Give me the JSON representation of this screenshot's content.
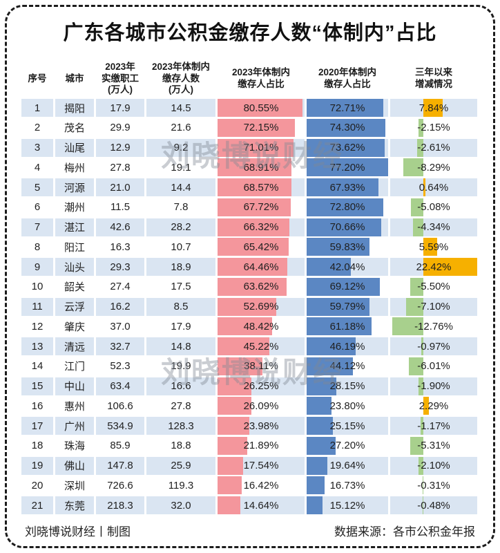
{
  "title": "广东各城市公积金缴存人数“体制内”占比",
  "watermark_text": "刘晓博说财经",
  "footer": {
    "credit": "刘晓博说财经丨制图",
    "source": "数据来源：各市公积金年报"
  },
  "colors": {
    "stripe_blue": "#dae5f2",
    "bar_pink": "#f4969c",
    "bar_blue": "#5b87c3",
    "bar_orange": "#f6b000",
    "bar_green": "#a8d08d",
    "text": "#1f1f1f",
    "border": "#1c1c1c"
  },
  "chart_data": {
    "type": "table",
    "title": "广东各城市公积金缴存人数“体制内”占比",
    "columns": [
      "序号",
      "城市",
      "2023年\n实缴职工\n(万人)",
      "2023年体制内\n缴存人数\n(万人)",
      "2023年体制内\n缴存人占比",
      "2020年体制内\n缴存人占比",
      "三年以来\n增减情况"
    ],
    "rows": [
      [
        "1",
        "揭阳",
        "17.9",
        "14.5",
        "80.55%",
        "72.71%",
        "7.84%"
      ],
      [
        "2",
        "茂名",
        "29.9",
        "21.6",
        "72.15%",
        "74.30%",
        "-2.15%"
      ],
      [
        "3",
        "汕尾",
        "12.9",
        "9.2",
        "71.01%",
        "73.62%",
        "-2.61%"
      ],
      [
        "4",
        "梅州",
        "27.8",
        "19.1",
        "68.91%",
        "77.20%",
        "-8.29%"
      ],
      [
        "5",
        "河源",
        "21.0",
        "14.4",
        "68.57%",
        "67.93%",
        "0.64%"
      ],
      [
        "6",
        "潮州",
        "11.5",
        "7.8",
        "67.72%",
        "72.80%",
        "-5.08%"
      ],
      [
        "7",
        "湛江",
        "42.6",
        "28.2",
        "66.32%",
        "70.66%",
        "-4.34%"
      ],
      [
        "8",
        "阳江",
        "16.3",
        "10.7",
        "65.42%",
        "59.83%",
        "5.59%"
      ],
      [
        "9",
        "汕头",
        "29.3",
        "18.9",
        "64.46%",
        "42.04%",
        "22.42%"
      ],
      [
        "10",
        "韶关",
        "27.4",
        "17.5",
        "63.62%",
        "69.12%",
        "-5.50%"
      ],
      [
        "11",
        "云浮",
        "16.2",
        "8.5",
        "52.69%",
        "59.79%",
        "-7.10%"
      ],
      [
        "12",
        "肇庆",
        "37.0",
        "17.9",
        "48.42%",
        "61.18%",
        "-12.76%"
      ],
      [
        "13",
        "清远",
        "32.7",
        "14.8",
        "45.22%",
        "46.19%",
        "-0.97%"
      ],
      [
        "14",
        "江门",
        "52.3",
        "19.9",
        "38.11%",
        "44.12%",
        "-6.01%"
      ],
      [
        "15",
        "中山",
        "63.4",
        "16.6",
        "26.25%",
        "28.15%",
        "-1.90%"
      ],
      [
        "16",
        "惠州",
        "106.6",
        "27.8",
        "26.09%",
        "23.80%",
        "2.29%"
      ],
      [
        "17",
        "广州",
        "534.9",
        "128.3",
        "23.98%",
        "25.15%",
        "-1.17%"
      ],
      [
        "18",
        "珠海",
        "85.9",
        "18.8",
        "21.89%",
        "27.20%",
        "-5.31%"
      ],
      [
        "19",
        "佛山",
        "147.8",
        "25.9",
        "17.54%",
        "19.64%",
        "-2.10%"
      ],
      [
        "20",
        "深圳",
        "726.6",
        "119.3",
        "16.42%",
        "16.73%",
        "-0.31%"
      ],
      [
        "21",
        "东莞",
        "218.3",
        "32.0",
        "14.64%",
        "15.12%",
        "-0.48%"
      ]
    ],
    "bar_scales": {
      "pct2023_max": 80.55,
      "pct2020_max": 77.2,
      "change_min": -12.76,
      "change_max": 22.42
    },
    "legend": "pink bar = 2023 share, blue bar = 2020 share, orange = increase, green = decrease"
  }
}
